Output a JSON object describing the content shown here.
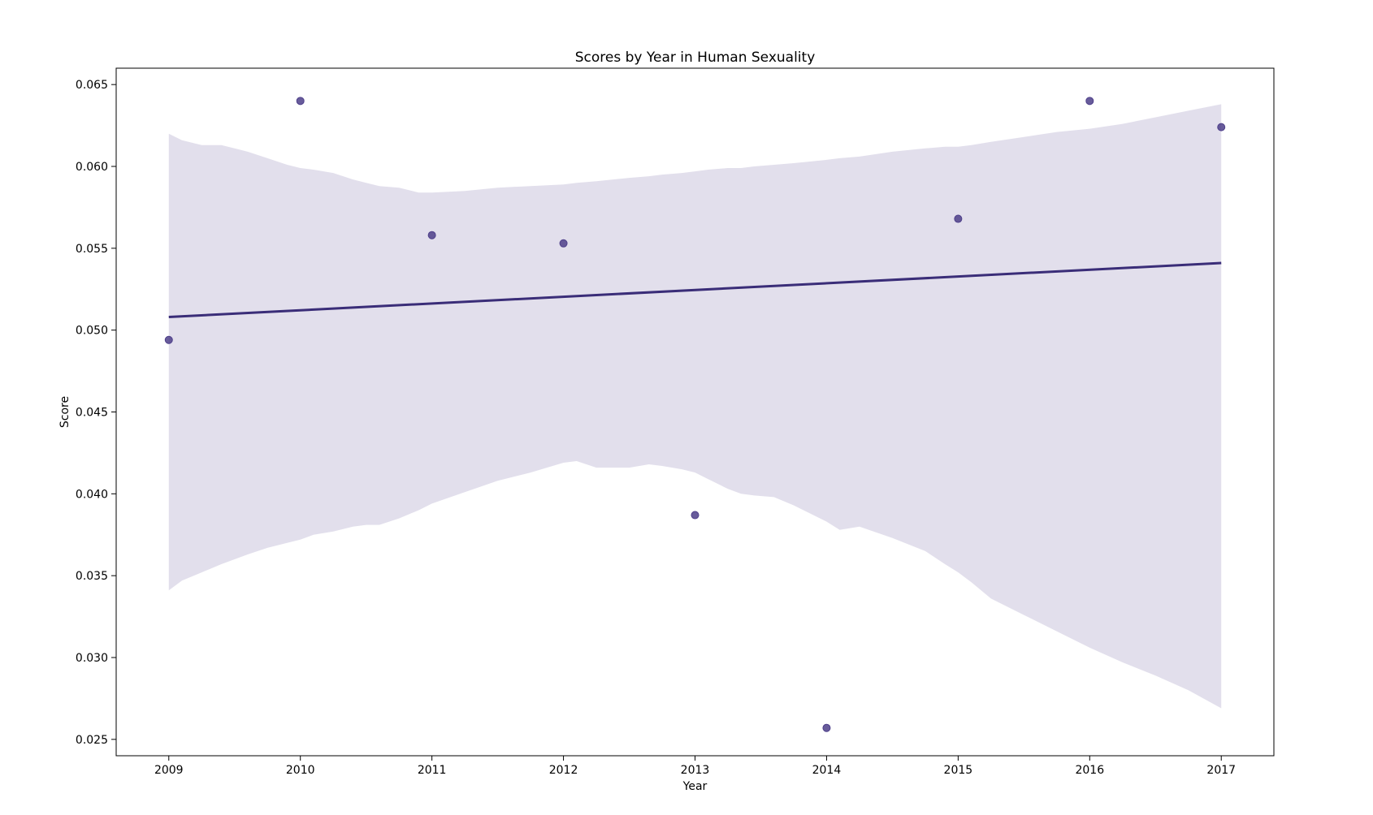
{
  "chart_data": {
    "type": "scatter",
    "title": "Scores by Year in Human Sexuality",
    "xlabel": "Year",
    "ylabel": "Score",
    "xlim": [
      2008.6,
      2017.4
    ],
    "ylim": [
      0.024,
      0.066
    ],
    "x_ticks": [
      2009,
      2010,
      2011,
      2012,
      2013,
      2014,
      2015,
      2016,
      2017
    ],
    "x_tick_labels": [
      "2009",
      "2010",
      "2011",
      "2012",
      "2013",
      "2014",
      "2015",
      "2016",
      "2017"
    ],
    "y_ticks": [
      0.025,
      0.03,
      0.035,
      0.04,
      0.045,
      0.05,
      0.055,
      0.06,
      0.065
    ],
    "y_tick_labels": [
      "0.025",
      "0.030",
      "0.035",
      "0.040",
      "0.045",
      "0.050",
      "0.055",
      "0.060",
      "0.065"
    ],
    "grid": false,
    "colors": {
      "point": "#4e3f8a",
      "line": "#3a2d78",
      "band": "#e2dfec"
    },
    "points": {
      "x": [
        2009,
        2010,
        2011,
        2012,
        2013,
        2014,
        2015,
        2016,
        2017
      ],
      "y": [
        0.0494,
        0.064,
        0.0558,
        0.0553,
        0.0387,
        0.0257,
        0.0568,
        0.064,
        0.0624
      ]
    },
    "regression_line": {
      "x": [
        2009,
        2017
      ],
      "y": [
        0.0508,
        0.0541
      ]
    },
    "confidence_band": {
      "x": [
        2009,
        2009.1,
        2009.25,
        2009.4,
        2009.5,
        2009.6,
        2009.75,
        2009.9,
        2010,
        2010.1,
        2010.25,
        2010.4,
        2010.5,
        2010.6,
        2010.75,
        2010.9,
        2011,
        2011.25,
        2011.5,
        2011.75,
        2012,
        2012.1,
        2012.25,
        2012.5,
        2012.65,
        2012.75,
        2012.9,
        2013,
        2013.1,
        2013.25,
        2013.35,
        2013.45,
        2013.6,
        2013.75,
        2014,
        2014.1,
        2014.25,
        2014.5,
        2014.75,
        2014.9,
        2015,
        2015.1,
        2015.25,
        2015.5,
        2015.75,
        2016,
        2016.25,
        2016.5,
        2016.75,
        2017
      ],
      "upper": [
        0.062,
        0.0616,
        0.0613,
        0.0613,
        0.0611,
        0.0609,
        0.0605,
        0.0601,
        0.0599,
        0.0598,
        0.0596,
        0.0592,
        0.059,
        0.0588,
        0.0587,
        0.0584,
        0.0584,
        0.0585,
        0.0587,
        0.0588,
        0.0589,
        0.059,
        0.0591,
        0.0593,
        0.0594,
        0.0595,
        0.0596,
        0.0597,
        0.0598,
        0.0599,
        0.0599,
        0.06,
        0.0601,
        0.0602,
        0.0604,
        0.0605,
        0.0606,
        0.0609,
        0.0611,
        0.0612,
        0.0612,
        0.0613,
        0.0615,
        0.0618,
        0.0621,
        0.0623,
        0.0626,
        0.063,
        0.0634,
        0.0638
      ],
      "lower": [
        0.0341,
        0.0347,
        0.0352,
        0.0357,
        0.036,
        0.0363,
        0.0367,
        0.037,
        0.0372,
        0.0375,
        0.0377,
        0.038,
        0.0381,
        0.0381,
        0.0385,
        0.039,
        0.0394,
        0.0401,
        0.0408,
        0.0413,
        0.0419,
        0.042,
        0.0416,
        0.0416,
        0.0418,
        0.0417,
        0.0415,
        0.0413,
        0.0409,
        0.0403,
        0.04,
        0.0399,
        0.0398,
        0.0393,
        0.0383,
        0.0378,
        0.038,
        0.0373,
        0.0365,
        0.0357,
        0.0352,
        0.0346,
        0.0336,
        0.0326,
        0.0316,
        0.0306,
        0.0297,
        0.0289,
        0.028,
        0.0269
      ]
    }
  }
}
